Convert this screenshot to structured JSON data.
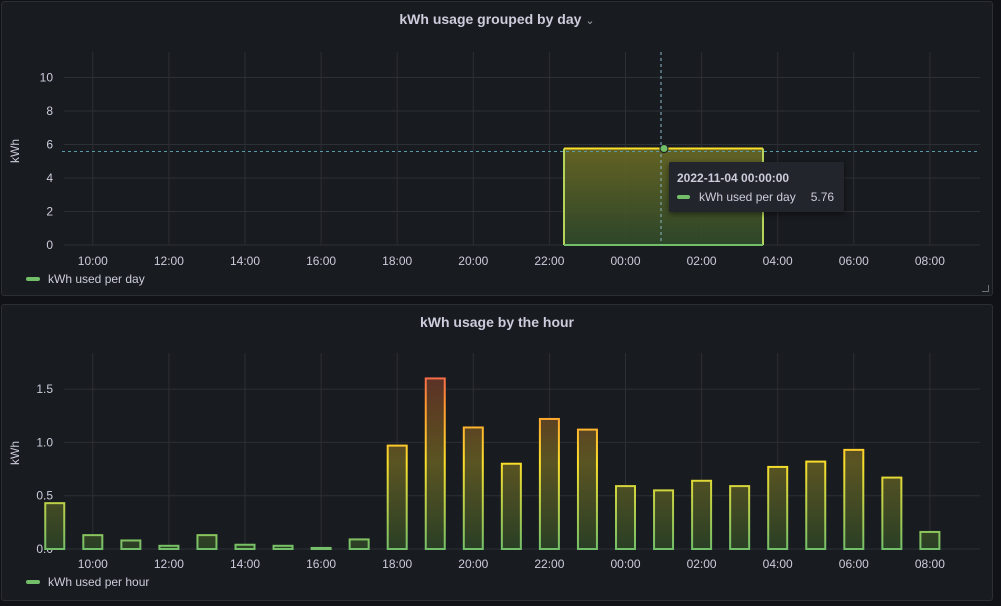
{
  "colors": {
    "green": "#73bf69",
    "yellow": "#fade2a",
    "orange": "#ff9830",
    "red": "#f2495c"
  },
  "day_panel": {
    "title": "kWh usage grouped by day",
    "chevron_icon": "chevron-down-icon",
    "legend": "kWh used per day",
    "tooltip": {
      "time": "2022-11-04 00:00:00",
      "series": "kWh used per day",
      "value": "5.76"
    }
  },
  "hour_panel": {
    "title": "kWh usage by the hour",
    "legend": "kWh used per hour"
  },
  "chart_data": [
    {
      "type": "bar",
      "title": "kWh usage grouped by day",
      "ylabel": "kWh",
      "xlabel": "",
      "ylim": [
        0,
        11.5
      ],
      "yticks": [
        "0",
        "2",
        "4",
        "6",
        "8",
        "10"
      ],
      "xticks": [
        "10:00",
        "12:00",
        "14:00",
        "16:00",
        "18:00",
        "20:00",
        "22:00",
        "00:00",
        "02:00",
        "04:00",
        "06:00",
        "08:00"
      ],
      "series": [
        {
          "name": "kWh used per day",
          "x": [
            "2022-11-04 00:00:00"
          ],
          "values": [
            5.76
          ]
        }
      ],
      "grid": true,
      "legend_position": "bottom-left"
    },
    {
      "type": "bar",
      "title": "kWh usage by the hour",
      "ylabel": "kWh",
      "xlabel": "",
      "ylim": [
        0,
        1.8
      ],
      "yticks": [
        "0.0",
        "0.5",
        "1.0",
        "1.5"
      ],
      "xticks": [
        "10:00",
        "12:00",
        "14:00",
        "16:00",
        "18:00",
        "20:00",
        "22:00",
        "00:00",
        "02:00",
        "04:00",
        "06:00",
        "08:00"
      ],
      "categories": [
        "09:00",
        "10:00",
        "11:00",
        "12:00",
        "13:00",
        "14:00",
        "15:00",
        "16:00",
        "17:00",
        "18:00",
        "19:00",
        "20:00",
        "21:00",
        "22:00",
        "23:00",
        "00:00",
        "01:00",
        "02:00",
        "03:00",
        "04:00",
        "05:00",
        "06:00",
        "07:00",
        "08:00"
      ],
      "series": [
        {
          "name": "kWh used per hour",
          "values": [
            0.43,
            0.13,
            0.08,
            0.03,
            0.13,
            0.04,
            0.03,
            0.01,
            0.09,
            0.97,
            1.6,
            1.14,
            0.8,
            1.22,
            1.12,
            0.59,
            0.55,
            0.64,
            0.59,
            0.77,
            0.82,
            0.93,
            0.67,
            0.16
          ]
        }
      ],
      "grid": true,
      "legend_position": "bottom-left"
    }
  ]
}
